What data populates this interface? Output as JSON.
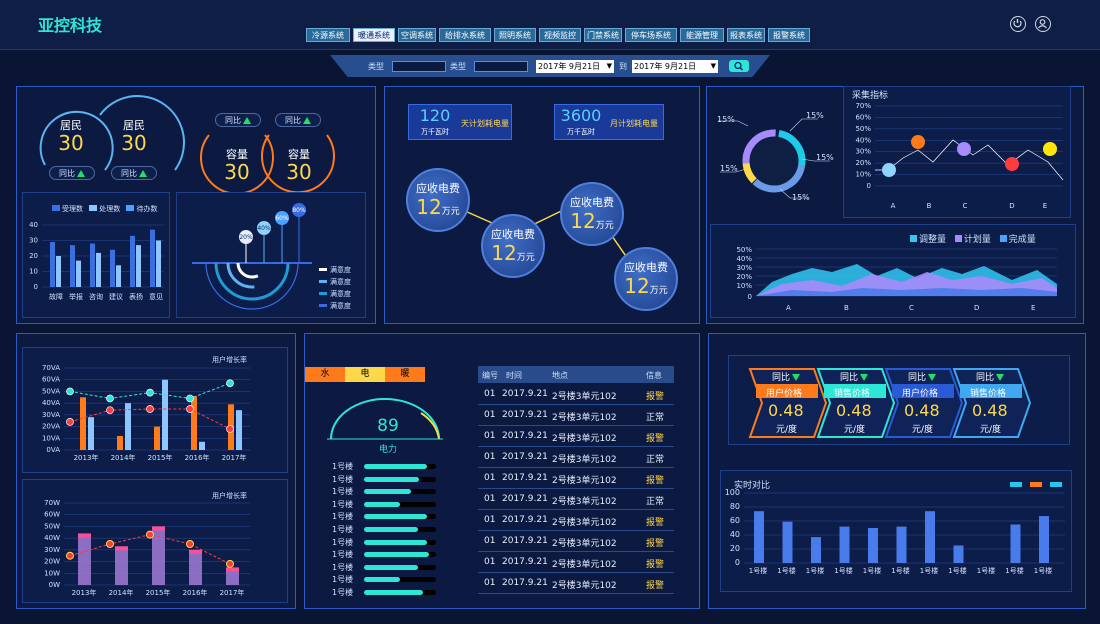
{
  "app": {
    "title": "亚控科技"
  },
  "tabs": [
    {
      "label": "冷源系统"
    },
    {
      "label": "暖通系统",
      "active": true
    },
    {
      "label": "空调系统"
    },
    {
      "label": "给排水系统"
    },
    {
      "label": "照明系统"
    },
    {
      "label": "视频监控"
    },
    {
      "label": "门禁系统"
    },
    {
      "label": "停车场系统"
    },
    {
      "label": "能源管理"
    },
    {
      "label": "报表系统"
    },
    {
      "label": "报警系统"
    }
  ],
  "header_icons": [
    "power-icon",
    "user-icon"
  ],
  "filter": {
    "type1_label": "类型",
    "type2_label": "类型",
    "date_from": "2017年  9月21日",
    "date_to": "2017年  9月21日",
    "to_label": "到",
    "search_icon": "search-icon"
  },
  "gauges": {
    "residents": [
      {
        "label": "居民",
        "value": "30"
      },
      {
        "label": "居民",
        "value": "30"
      }
    ],
    "residents_yoy": [
      "同比",
      "同比"
    ],
    "capacity": [
      {
        "label": "容量",
        "value": "30"
      },
      {
        "label": "容量",
        "value": "30"
      }
    ],
    "capacity_yoy": [
      "同比",
      "同比"
    ]
  },
  "bar_small": {
    "legend": [
      "受理数",
      "处理数",
      "待办数"
    ],
    "yticks": [
      "40",
      "30",
      "20",
      "10",
      "0"
    ],
    "categories": [
      "故障",
      "举报",
      "咨询",
      "建议",
      "表扬",
      "意见"
    ]
  },
  "radial": {
    "pcts": [
      "20%",
      "40%",
      "60%",
      "80%"
    ],
    "legend": [
      "满意度",
      "满意度",
      "满意度",
      "满意度"
    ]
  },
  "plan": {
    "day": {
      "value": "120",
      "unit": "万千瓦时",
      "label": "天计划耗电量"
    },
    "month": {
      "value": "3600",
      "unit": "万千瓦时",
      "label": "月计划耗电量"
    }
  },
  "fees": [
    {
      "title": "应收电费",
      "value": "12",
      "unit": "万元"
    },
    {
      "title": "应收电费",
      "value": "12",
      "unit": "万元"
    },
    {
      "title": "应收电费",
      "value": "12",
      "unit": "万元"
    },
    {
      "title": "应收电费",
      "value": "12",
      "unit": "万元"
    }
  ],
  "donut": {
    "labels": [
      "15%",
      "15%",
      "15%",
      "15%",
      "15%"
    ],
    "colors": [
      "#1fc9e8",
      "#a78bfa",
      "#ffd84a",
      "#6a9be8",
      "#2a3e7a"
    ]
  },
  "collect": {
    "title": "采集指标",
    "yticks": [
      "70%",
      "60%",
      "50%",
      "40%",
      "30%",
      "20%",
      "10%",
      "0"
    ],
    "categories": [
      "A",
      "B",
      "C",
      "D",
      "E"
    ]
  },
  "area": {
    "legend": [
      "调整量",
      "计划量",
      "完成量"
    ],
    "legend_colors": [
      "#33c8f5",
      "#a78bfa",
      "#4aa3ff"
    ],
    "yticks": [
      "50%",
      "40%",
      "30%",
      "20%",
      "10%",
      "0"
    ],
    "categories": [
      "A",
      "B",
      "C",
      "D",
      "E"
    ]
  },
  "chart_data": [
    {
      "type": "bar",
      "title": "",
      "categories": [
        "故障",
        "举报",
        "咨询",
        "建议",
        "表扬",
        "意见"
      ],
      "series": [
        {
          "name": "受理数",
          "values": [
            29,
            27,
            28,
            24,
            33,
            37
          ]
        },
        {
          "name": "处理数",
          "values": [
            20,
            17,
            22,
            14,
            27,
            30
          ]
        },
        {
          "name": "待办数",
          "values": [
            11,
            12,
            10,
            10,
            12,
            13
          ]
        }
      ],
      "ylim": [
        0,
        40
      ]
    },
    {
      "type": "scatter",
      "title": "采集指标",
      "categories": [
        "A",
        "B",
        "C",
        "D",
        "E"
      ],
      "points": [
        15,
        40,
        35,
        24,
        35
      ],
      "ylim": [
        0,
        70
      ]
    },
    {
      "type": "bar",
      "title": "用户增长率",
      "categories": [
        "2013年",
        "2014年",
        "2015年",
        "2016年",
        "2017年"
      ],
      "series": [
        {
          "name": "a",
          "values": [
            45,
            12,
            20,
            46,
            39
          ]
        },
        {
          "name": "b",
          "values": [
            28,
            40,
            60,
            7,
            34
          ]
        }
      ],
      "lines": [
        [
          50,
          44,
          49,
          44,
          57
        ],
        [
          24,
          34,
          35,
          35,
          18
        ]
      ],
      "ylim": [
        0,
        70
      ],
      "yticks": [
        "70VA",
        "60VA",
        "50VA",
        "40VA",
        "30VA",
        "20VA",
        "10VA",
        "0VA"
      ]
    },
    {
      "type": "bar",
      "title": "用户增长率",
      "categories": [
        "2013年",
        "2014年",
        "2015年",
        "2016年",
        "2017年"
      ],
      "series": [
        {
          "name": "a",
          "values": [
            44,
            33,
            50,
            30,
            15
          ]
        }
      ],
      "line": [
        25,
        35,
        43,
        35,
        18
      ],
      "ylim": [
        0,
        70
      ],
      "yticks": [
        "70W",
        "60W",
        "50W",
        "40W",
        "30W",
        "20W",
        "10W",
        "0W"
      ]
    },
    {
      "type": "bar",
      "title": "实时对比",
      "categories": [
        "1号楼",
        "1号楼",
        "1号楼",
        "1号楼",
        "1号楼",
        "1号楼",
        "1号楼",
        "1号楼",
        "1号楼",
        "1号楼",
        "1号楼"
      ],
      "values": [
        74,
        59,
        37,
        52,
        50,
        52,
        74,
        25,
        0,
        55,
        67
      ],
      "ylim": [
        0,
        100
      ],
      "yticks": [
        "100",
        "80",
        "60",
        "40",
        "20",
        "0"
      ]
    }
  ],
  "utility": {
    "tabs": [
      "水",
      "电",
      "暖"
    ],
    "gauge_value": "89",
    "gauge_label": "电力",
    "buildings": [
      "1号楼",
      "1号楼",
      "1号楼",
      "1号楼",
      "1号楼",
      "1号楼",
      "1号楼",
      "1号楼",
      "1号楼",
      "1号楼",
      "1号楼"
    ],
    "levels": [
      0.88,
      0.76,
      0.65,
      0.5,
      0.88,
      0.75,
      0.88,
      0.9,
      0.75,
      0.5,
      0.82
    ]
  },
  "table": {
    "headers": [
      "编号",
      "时间",
      "地点",
      "信息"
    ],
    "rows": [
      [
        "01",
        "2017.9.21",
        "2号楼3单元102",
        "报警"
      ],
      [
        "01",
        "2017.9.21",
        "2号楼3单元102",
        "正常"
      ],
      [
        "01",
        "2017.9.21",
        "2号楼3单元102",
        "报警"
      ],
      [
        "01",
        "2017.9.21",
        "2号楼3单元102",
        "正常"
      ],
      [
        "01",
        "2017.9.21",
        "2号楼3单元102",
        "报警"
      ],
      [
        "01",
        "2017.9.21",
        "2号楼3单元102",
        "正常"
      ],
      [
        "01",
        "2017.9.21",
        "2号楼3单元102",
        "报警"
      ],
      [
        "01",
        "2017.9.21",
        "2号楼3单元102",
        "报警"
      ],
      [
        "01",
        "2017.9.21",
        "2号楼3单元102",
        "报警"
      ],
      [
        "01",
        "2017.9.21",
        "2号楼3单元102",
        "报警"
      ]
    ]
  },
  "prices": [
    {
      "yoy": "同比",
      "label": "用户价格",
      "value": "0.48",
      "unit": "元/度",
      "color": "#ff7a1a"
    },
    {
      "yoy": "同比",
      "label": "销售价格",
      "value": "0.48",
      "unit": "元/度",
      "color": "#2ee6d6"
    },
    {
      "yoy": "同比",
      "label": "用户价格",
      "value": "0.48",
      "unit": "元/度",
      "color": "#2a5bd6"
    },
    {
      "yoy": "同比",
      "label": "销售价格",
      "value": "0.48",
      "unit": "元/度",
      "color": "#3fa8f0"
    }
  ],
  "realtime": {
    "title": "实时对比",
    "legend_colors": [
      "#29c6f0",
      "#ff7a1a",
      "#29c6f0"
    ]
  },
  "growth": {
    "title1": "用户增长率",
    "title2": "用户增长率"
  }
}
